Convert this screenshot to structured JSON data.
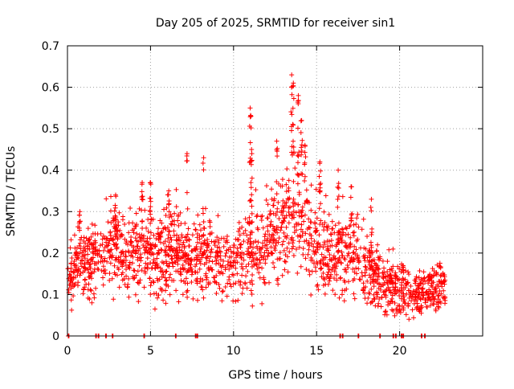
{
  "chart_data": {
    "type": "scatter",
    "title": "Day 205 of 2025, SRMTID for receiver sin1",
    "xlabel": "GPS time / hours",
    "ylabel": "SRMTID / TECUs",
    "xlim": [
      0,
      25
    ],
    "ylim": [
      0,
      0.7
    ],
    "xticks": [
      "0",
      "5",
      "10",
      "15",
      "20"
    ],
    "yticks": [
      "0",
      "0.1",
      "0.2",
      "0.3",
      "0.4",
      "0.5",
      "0.6",
      "0.7"
    ],
    "grid": true,
    "marker": "+",
    "color": "#ff0000",
    "series": [
      {
        "name": "SRMTID",
        "x_start": 0.0,
        "x_end": 22.75,
        "profile": [
          [
            0.0,
            0.14,
            0.035
          ],
          [
            0.5,
            0.16,
            0.04
          ],
          [
            1.0,
            0.17,
            0.045
          ],
          [
            1.5,
            0.18,
            0.045
          ],
          [
            2.0,
            0.2,
            0.045
          ],
          [
            2.5,
            0.23,
            0.05
          ],
          [
            3.0,
            0.22,
            0.05
          ],
          [
            3.5,
            0.19,
            0.045
          ],
          [
            4.0,
            0.2,
            0.045
          ],
          [
            4.5,
            0.21,
            0.05
          ],
          [
            5.0,
            0.2,
            0.05
          ],
          [
            5.5,
            0.19,
            0.05
          ],
          [
            6.0,
            0.2,
            0.05
          ],
          [
            6.5,
            0.21,
            0.05
          ],
          [
            7.0,
            0.2,
            0.05
          ],
          [
            7.5,
            0.18,
            0.05
          ],
          [
            8.0,
            0.18,
            0.05
          ],
          [
            8.5,
            0.2,
            0.05
          ],
          [
            9.0,
            0.19,
            0.05
          ],
          [
            9.5,
            0.17,
            0.045
          ],
          [
            10.0,
            0.16,
            0.045
          ],
          [
            10.5,
            0.18,
            0.05
          ],
          [
            11.0,
            0.2,
            0.055
          ],
          [
            11.5,
            0.2,
            0.055
          ],
          [
            12.0,
            0.23,
            0.055
          ],
          [
            12.5,
            0.25,
            0.06
          ],
          [
            13.0,
            0.27,
            0.06
          ],
          [
            13.5,
            0.28,
            0.065
          ],
          [
            14.0,
            0.27,
            0.06
          ],
          [
            14.5,
            0.26,
            0.06
          ],
          [
            15.0,
            0.22,
            0.055
          ],
          [
            15.5,
            0.2,
            0.05
          ],
          [
            16.0,
            0.19,
            0.05
          ],
          [
            16.5,
            0.2,
            0.05
          ],
          [
            17.0,
            0.2,
            0.05
          ],
          [
            17.5,
            0.21,
            0.05
          ],
          [
            18.0,
            0.17,
            0.045
          ],
          [
            18.5,
            0.14,
            0.04
          ],
          [
            19.0,
            0.13,
            0.035
          ],
          [
            19.5,
            0.12,
            0.035
          ],
          [
            20.0,
            0.11,
            0.03
          ],
          [
            20.5,
            0.11,
            0.03
          ],
          [
            21.0,
            0.1,
            0.03
          ],
          [
            21.5,
            0.11,
            0.03
          ],
          [
            22.0,
            0.12,
            0.03
          ],
          [
            22.75,
            0.12,
            0.03
          ]
        ],
        "spikes": [
          [
            0.75,
            0.3
          ],
          [
            2.9,
            0.34
          ],
          [
            4.5,
            0.37
          ],
          [
            5.0,
            0.37
          ],
          [
            6.1,
            0.35
          ],
          [
            7.2,
            0.44
          ],
          [
            8.2,
            0.43
          ],
          [
            11.0,
            0.55
          ],
          [
            11.05,
            0.53
          ],
          [
            11.1,
            0.44
          ],
          [
            12.6,
            0.47
          ],
          [
            13.5,
            0.63
          ],
          [
            13.6,
            0.61
          ],
          [
            13.9,
            0.58
          ],
          [
            14.1,
            0.52
          ],
          [
            14.3,
            0.46
          ],
          [
            15.2,
            0.42
          ],
          [
            16.3,
            0.4
          ],
          [
            17.1,
            0.36
          ],
          [
            18.3,
            0.33
          ],
          [
            19.5,
            0.14
          ],
          [
            20.2,
            0.17
          ]
        ],
        "zeros": [
          0.05,
          1.7,
          1.85,
          2.3,
          2.7,
          4.6,
          6.5,
          7.7,
          7.8,
          16.4,
          16.55,
          17.5,
          18.8,
          19.6,
          19.75,
          20.1,
          20.2,
          21.3,
          21.5
        ]
      }
    ]
  }
}
